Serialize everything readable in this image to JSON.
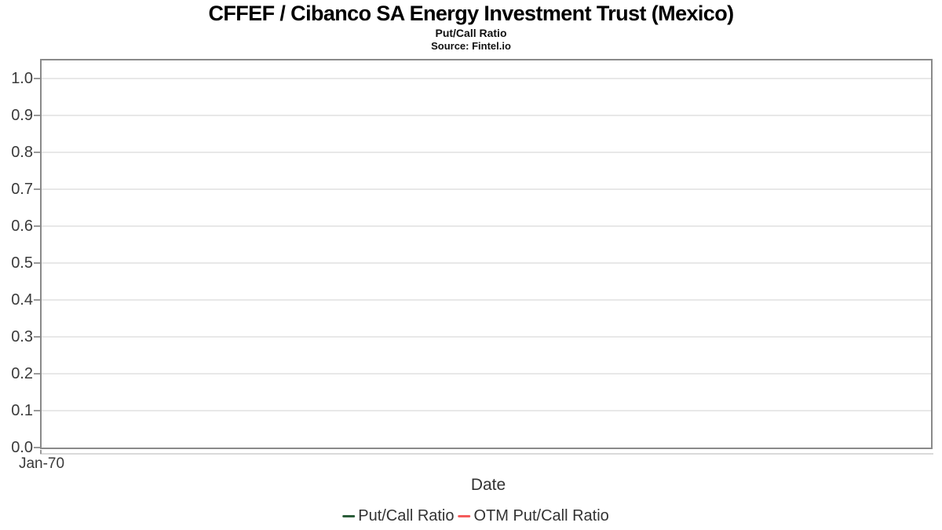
{
  "header": {
    "title": "CFFEF / Cibanco SA Energy Investment Trust (Mexico)",
    "subtitle": "Put/Call Ratio",
    "source": "Source: Fintel.io"
  },
  "chart_data": {
    "type": "line",
    "title": "CFFEF / Cibanco SA Energy Investment Trust (Mexico)",
    "subtitle": "Put/Call Ratio",
    "source": "Source: Fintel.io",
    "xlabel": "Date",
    "ylabel": "",
    "x_tick_labels": [
      "Jan-70"
    ],
    "y_tick_values": [
      0.0,
      0.1,
      0.2,
      0.3,
      0.4,
      0.5,
      0.6,
      0.7,
      0.8,
      0.9,
      1.0
    ],
    "y_tick_format_decimals": 1,
    "ylim": [
      0,
      1.05
    ],
    "grid": true,
    "legend_position": "bottom-center",
    "series": [
      {
        "name": "Put/Call Ratio",
        "color": "#2b5d39",
        "x": [],
        "values": []
      },
      {
        "name": "OTM Put/Call Ratio",
        "color": "#f45b5b",
        "x": [],
        "values": []
      }
    ]
  },
  "colors": {
    "background": "#ffffff",
    "title_text": "#000000",
    "plot_border": "#8a8a8a",
    "gridline": "#e8e8e8",
    "x_axis_line": "#dadada",
    "tick_mark": "#999999",
    "tick_label": "#3a3a3a",
    "axis_title": "#333333",
    "legend_text": "#333333",
    "series_put_call": "#2b5d39",
    "series_otm_put_call": "#f45b5b"
  }
}
